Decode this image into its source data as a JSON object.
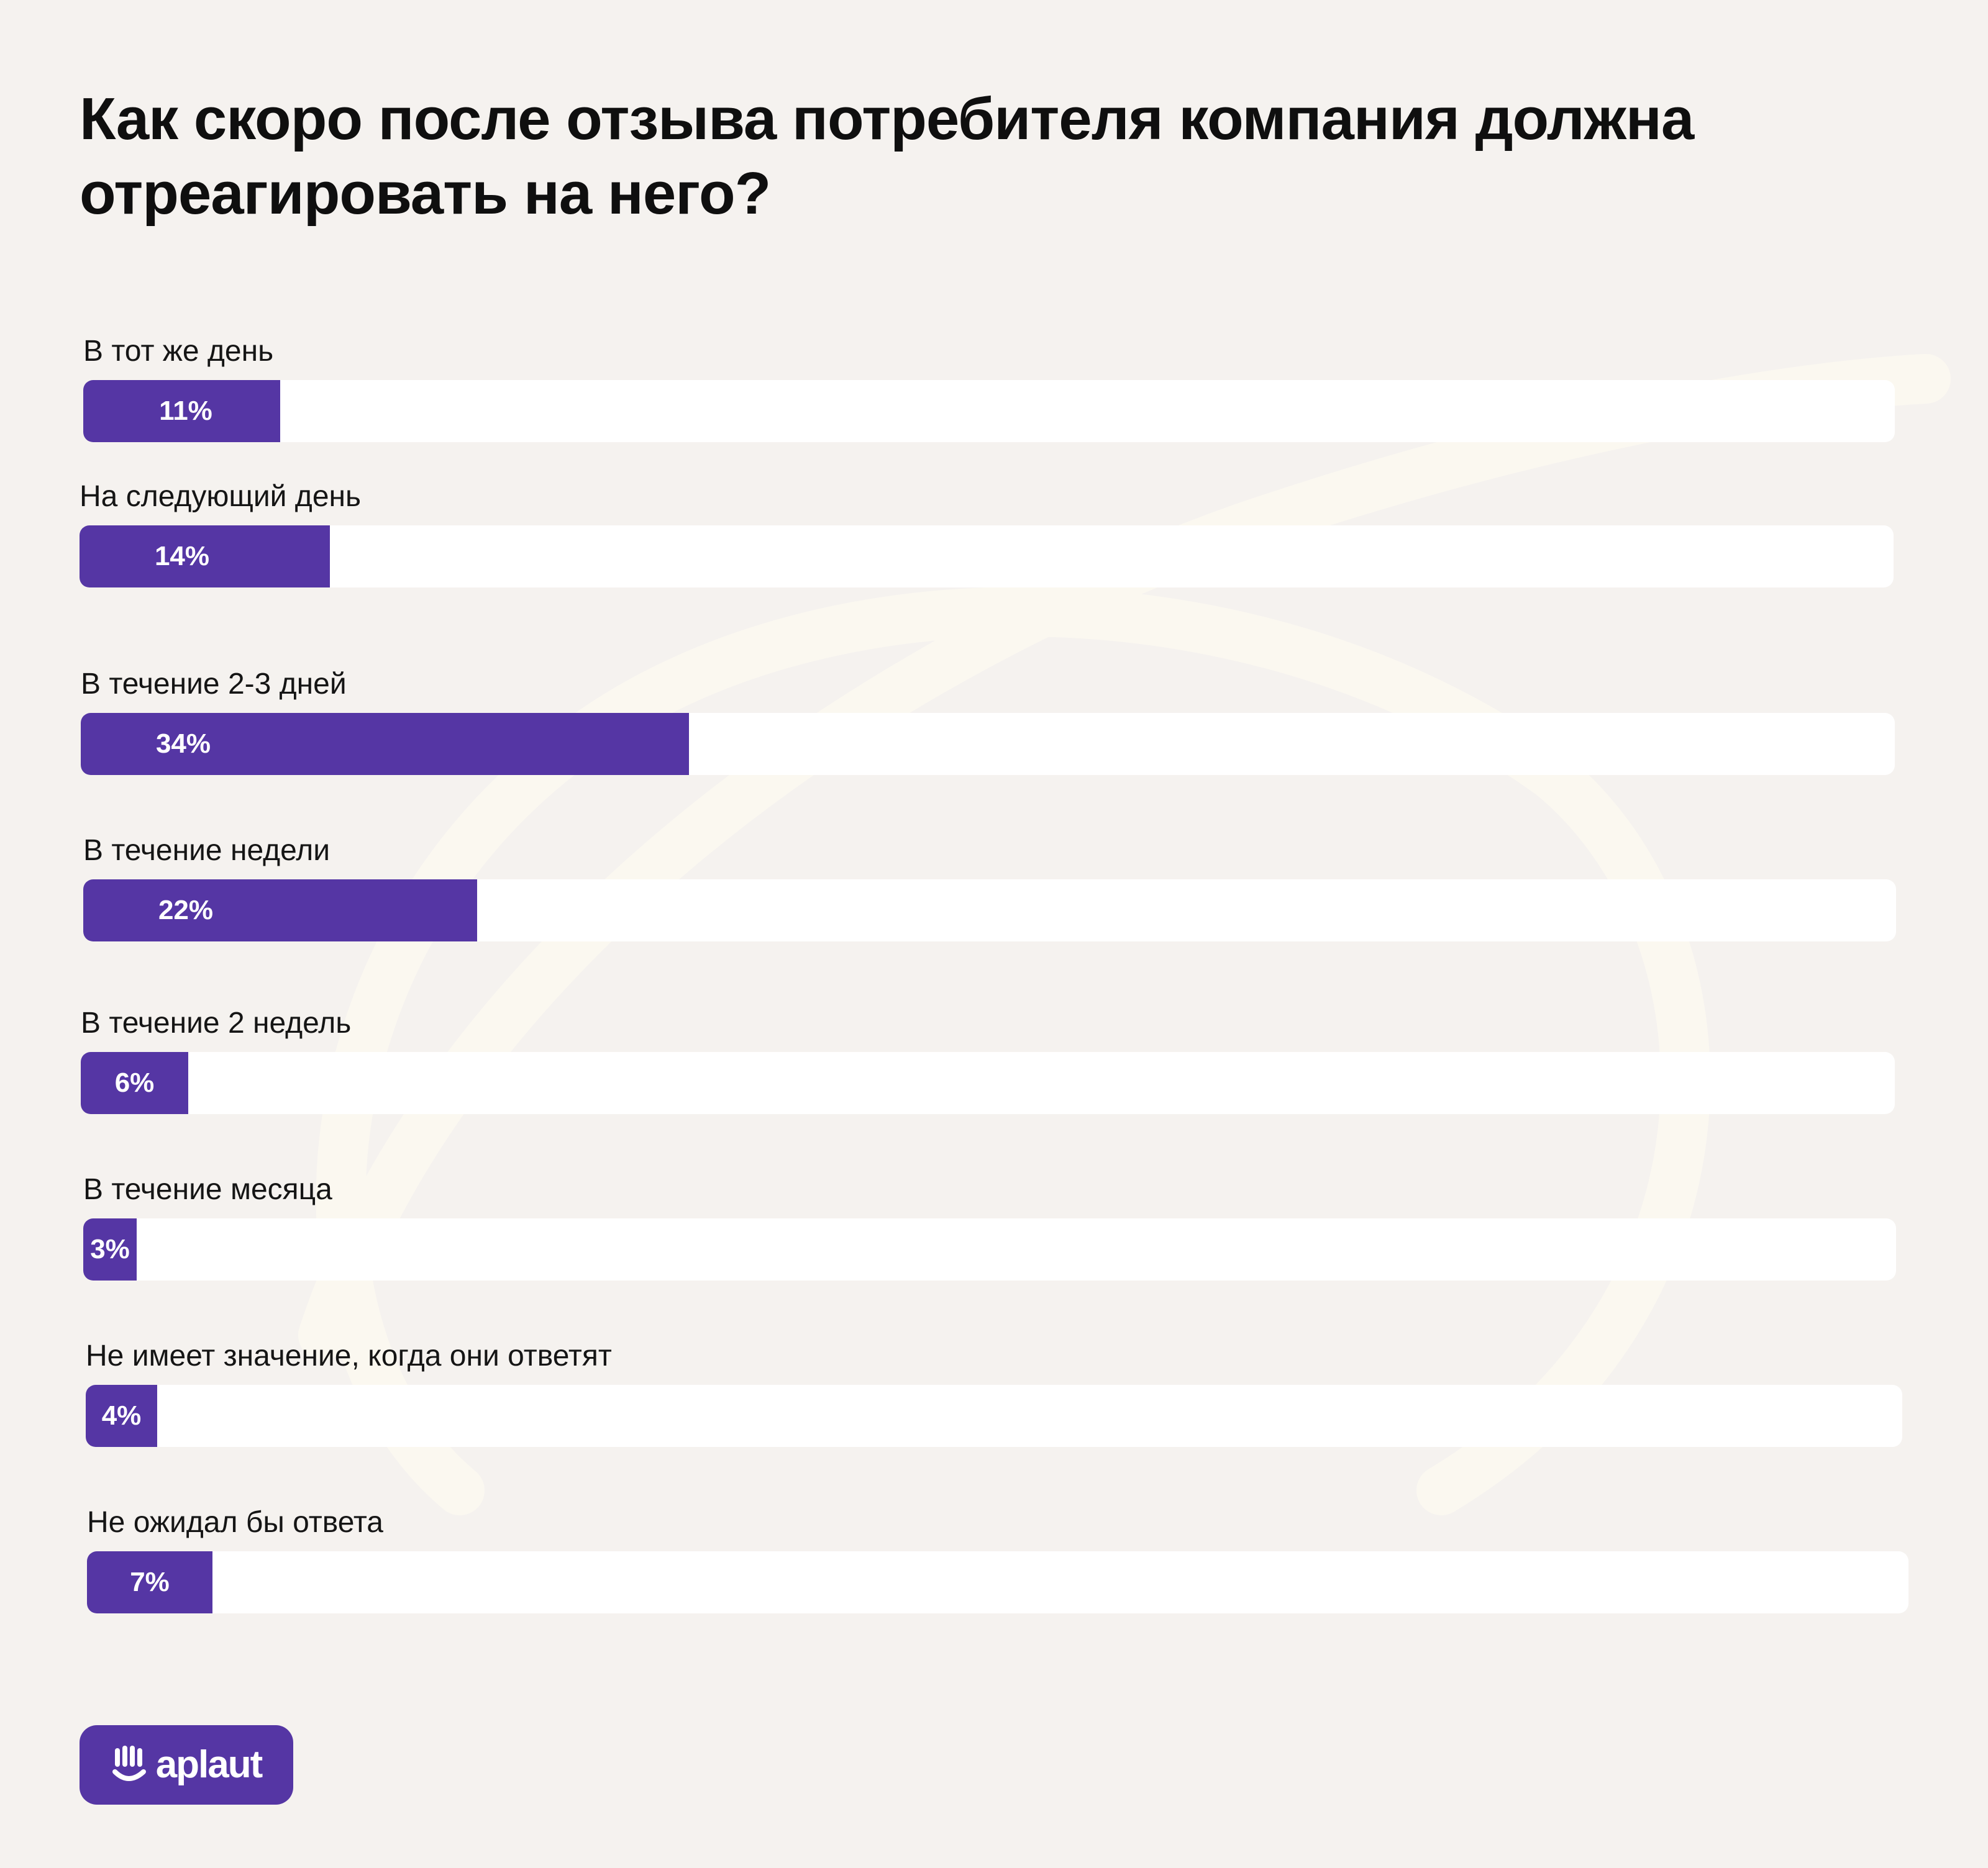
{
  "title": "Как скоро после отзыва потребителя компания должна отреагировать на него?",
  "colors": {
    "background": "#f5f2ef",
    "bar_fill": "#5536a4",
    "bar_track": "#ffffff",
    "value_text": "#ffffff",
    "decoration": "#fbf8f0"
  },
  "chart_data": {
    "type": "bar",
    "orientation": "horizontal",
    "title": "Как скоро после отзыва потребителя компания должна отреагировать на него?",
    "xlabel": "",
    "ylabel": "",
    "xlim": [
      0,
      100
    ],
    "grid": false,
    "legend": "none",
    "categories": [
      "В тот же день",
      "На следующий день",
      "В течение 2-3 дней",
      "В течение недели",
      "В течение 2 недель",
      "В течение месяца",
      "Не имеет значение, когда они ответят",
      "Не ожидал бы ответа"
    ],
    "values": [
      11,
      14,
      34,
      22,
      6,
      3,
      4,
      7
    ],
    "value_labels": [
      "11%",
      "14%",
      "34%",
      "22%",
      "6%",
      "3%",
      "4%",
      "7%"
    ]
  },
  "logo": {
    "text": "aplaut",
    "icon": "hand-icon"
  }
}
